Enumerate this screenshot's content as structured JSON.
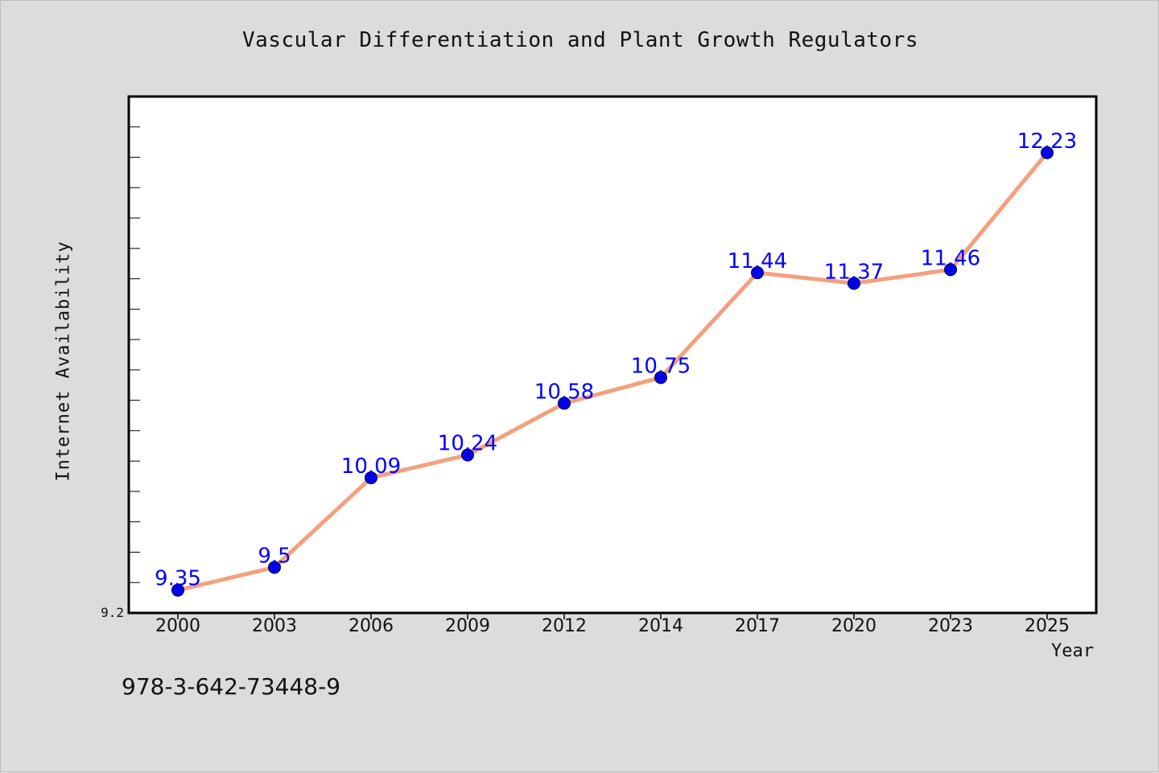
{
  "chart_data": {
    "type": "line",
    "title": "Vascular Differentiation and Plant Growth Regulators",
    "xlabel": "Year",
    "ylabel": "Internet Availability",
    "categories": [
      "2000",
      "2003",
      "2006",
      "2009",
      "2012",
      "2014",
      "2017",
      "2020",
      "2023",
      "2025"
    ],
    "series": [
      {
        "values": [
          9.35,
          9.5,
          10.09,
          10.24,
          10.58,
          10.75,
          11.44,
          11.37,
          11.46,
          12.23
        ],
        "data_labels": [
          "9.35",
          "9.5",
          "10.09",
          "10.24",
          "10.58",
          "10.75",
          "11.44",
          "11.37",
          "11.46",
          "12.23"
        ],
        "line_color": "#f4a07e",
        "marker_color": "#0000ee",
        "label_color": "#0000ff"
      }
    ],
    "y_tick_labels": [
      "9.2"
    ],
    "ylim": [
      9.2,
      12.6
    ],
    "grid": false,
    "legend": "none"
  },
  "footnote": "978-3-642-73448-9"
}
